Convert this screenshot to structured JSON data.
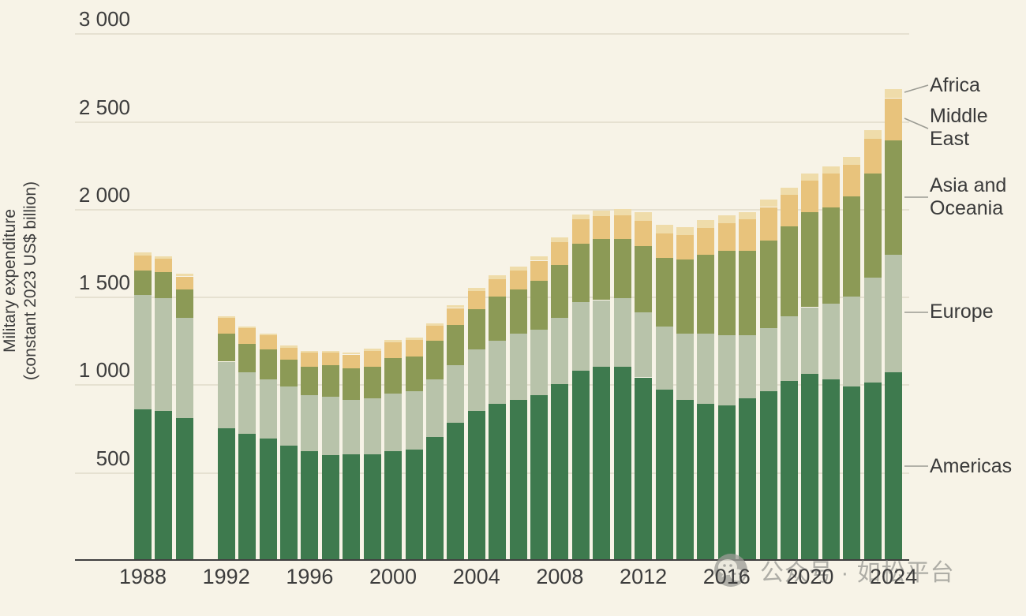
{
  "chart_data": {
    "type": "bar",
    "stacked": true,
    "title": "",
    "ylabel_line1": "Military expenditure",
    "ylabel_line2": "(constant 2023 US$ billion)",
    "unit": "constant 2023 US$ billion",
    "ylim": [
      0,
      3000
    ],
    "grid": true,
    "legend_position": "right",
    "missing_years": [
      1991
    ],
    "x": [
      1988,
      1989,
      1990,
      1992,
      1993,
      1994,
      1995,
      1996,
      1997,
      1998,
      1999,
      2000,
      2001,
      2002,
      2003,
      2004,
      2005,
      2006,
      2007,
      2008,
      2009,
      2010,
      2011,
      2012,
      2013,
      2014,
      2015,
      2016,
      2017,
      2018,
      2019,
      2020,
      2021,
      2022,
      2023,
      2024
    ],
    "series": [
      {
        "name": "Americas",
        "color": "#3e7a4e",
        "values": [
          860,
          850,
          810,
          750,
          720,
          690,
          650,
          620,
          600,
          600,
          600,
          620,
          630,
          700,
          780,
          850,
          890,
          910,
          940,
          1000,
          1080,
          1100,
          1100,
          1040,
          970,
          910,
          890,
          880,
          920,
          960,
          1020,
          1060,
          1030,
          990,
          1010,
          1070
        ]
      },
      {
        "name": "Europe",
        "color": "#b8c3aa",
        "values": [
          650,
          640,
          570,
          380,
          350,
          340,
          340,
          320,
          330,
          310,
          320,
          330,
          330,
          330,
          330,
          350,
          360,
          380,
          370,
          380,
          390,
          380,
          390,
          370,
          360,
          380,
          400,
          400,
          360,
          360,
          370,
          380,
          430,
          510,
          600,
          670
        ]
      },
      {
        "name": "Asia and Oceania",
        "color": "#8c9a56",
        "values": [
          140,
          150,
          160,
          160,
          160,
          170,
          150,
          160,
          180,
          180,
          180,
          200,
          200,
          220,
          230,
          230,
          250,
          250,
          280,
          300,
          330,
          350,
          340,
          380,
          390,
          420,
          450,
          480,
          480,
          500,
          510,
          540,
          550,
          570,
          590,
          650
        ]
      },
      {
        "name": "Middle East",
        "color": "#e8c37c",
        "values": [
          85,
          75,
          75,
          90,
          90,
          80,
          70,
          80,
          70,
          80,
          90,
          90,
          95,
          85,
          95,
          100,
          100,
          110,
          115,
          130,
          140,
          130,
          135,
          140,
          140,
          140,
          150,
          160,
          180,
          190,
          180,
          180,
          190,
          180,
          200,
          240
        ]
      },
      {
        "name": "Africa",
        "color": "#efdcaa",
        "values": [
          15,
          15,
          15,
          10,
          10,
          10,
          10,
          10,
          10,
          10,
          12,
          12,
          14,
          15,
          15,
          18,
          20,
          22,
          25,
          28,
          30,
          32,
          35,
          50,
          48,
          48,
          45,
          42,
          42,
          42,
          42,
          43,
          42,
          48,
          50,
          50
        ]
      }
    ],
    "y_ticks": [
      {
        "value": 500,
        "label": "500"
      },
      {
        "value": 1000,
        "label": "1 000"
      },
      {
        "value": 1500,
        "label": "1 500"
      },
      {
        "value": 2000,
        "label": "2 000"
      },
      {
        "value": 2500,
        "label": "2 500"
      },
      {
        "value": 3000,
        "label": "3 000"
      }
    ],
    "x_ticks": [
      {
        "value": 1988,
        "label": "1988"
      },
      {
        "value": 1992,
        "label": "1992"
      },
      {
        "value": 1996,
        "label": "1996"
      },
      {
        "value": 2000,
        "label": "2000"
      },
      {
        "value": 2004,
        "label": "2004"
      },
      {
        "value": 2008,
        "label": "2008"
      },
      {
        "value": 2012,
        "label": "2012"
      },
      {
        "value": 2016,
        "label": "2016"
      },
      {
        "value": 2020,
        "label": "2020"
      },
      {
        "value": 2024,
        "label": "2024"
      }
    ]
  },
  "legend": {
    "africa": "Africa",
    "middle_east": "Middle East",
    "asia": "Asia and Oceania",
    "europe": "Europe",
    "americas": "Americas"
  },
  "watermark": {
    "icon": "wechat-icon",
    "text": "公众号 · 如松平台"
  },
  "colors": {
    "background": "#f7f3e7",
    "gridline": "#e6e1d1",
    "axis_line": "#3f3f3f",
    "text": "#3c3c3c",
    "connector": "#9b9b93",
    "watermark": "#a2a19b"
  }
}
